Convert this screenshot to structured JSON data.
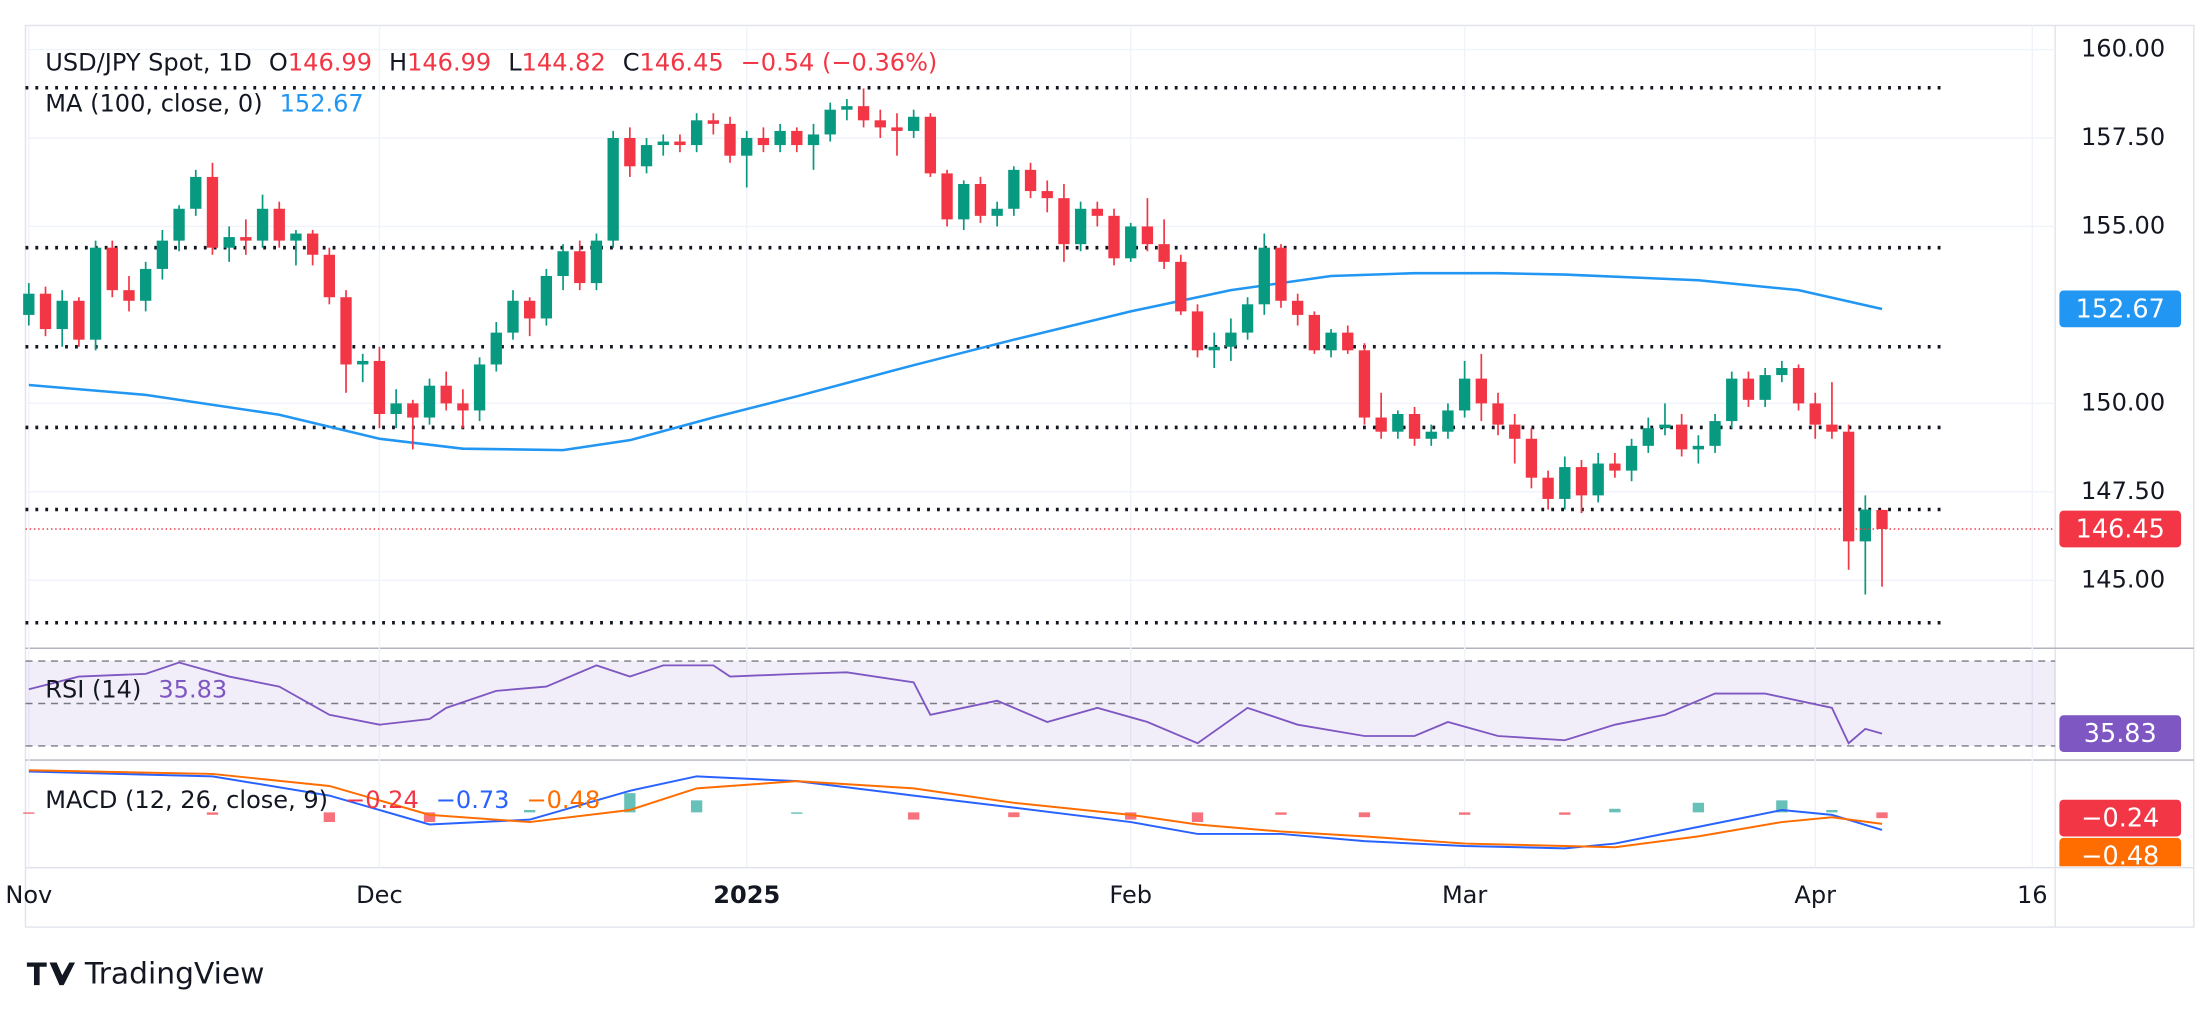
{
  "header": {
    "symbol": "USD/JPY Spot, 1D",
    "o": "O",
    "h": "H",
    "l": "L",
    "c": "C",
    "change": "−0.54 (−0.36%)"
  },
  "brand": "TradingView",
  "chart_data": [
    {
      "type": "candlestick",
      "up_color": "#089981",
      "down_color": "#f23645",
      "grid": true,
      "xlim": [
        -0.2,
        121.2
      ],
      "xticks": [
        {
          "value": 0,
          "label": "Nov"
        },
        {
          "value": 21,
          "label": "Dec"
        },
        {
          "value": 43,
          "label": "2025",
          "bold": true
        },
        {
          "value": 66,
          "label": "Feb"
        },
        {
          "value": 86,
          "label": "Mar"
        },
        {
          "value": 107,
          "label": "Apr"
        },
        {
          "value": 120,
          "label": "16"
        }
      ],
      "ylim": [
        143.2,
        160.68
      ],
      "yticks": [
        {
          "value": 145,
          "label": "145.00"
        },
        {
          "value": 147.5,
          "label": "147.50"
        },
        {
          "value": 150,
          "label": "150.00"
        },
        {
          "value": 155,
          "label": "155.00"
        },
        {
          "value": 157.5,
          "label": "157.50"
        },
        {
          "value": 160,
          "label": "160.00"
        }
      ],
      "levels": [
        158.92,
        154.4,
        151.6,
        149.32,
        147.0,
        143.8
      ],
      "ohlc": [
        [
          152.5,
          153.4,
          152.2,
          153.1
        ],
        [
          153.1,
          153.3,
          151.9,
          152.1
        ],
        [
          152.1,
          153.2,
          151.6,
          152.9
        ],
        [
          152.9,
          153.0,
          151.6,
          151.8
        ],
        [
          151.8,
          154.6,
          151.5,
          154.4
        ],
        [
          154.4,
          154.6,
          153.0,
          153.2
        ],
        [
          153.2,
          153.6,
          152.6,
          152.9
        ],
        [
          152.9,
          154.0,
          152.6,
          153.8
        ],
        [
          153.8,
          154.9,
          153.5,
          154.6
        ],
        [
          154.6,
          155.6,
          154.3,
          155.5
        ],
        [
          155.5,
          156.6,
          155.3,
          156.4
        ],
        [
          156.4,
          156.8,
          154.2,
          154.4
        ],
        [
          154.4,
          155.0,
          154.0,
          154.7
        ],
        [
          154.7,
          155.2,
          154.2,
          154.6
        ],
        [
          154.6,
          155.9,
          154.4,
          155.5
        ],
        [
          155.5,
          155.7,
          154.4,
          154.6
        ],
        [
          154.6,
          154.9,
          153.9,
          154.8
        ],
        [
          154.8,
          154.9,
          153.9,
          154.2
        ],
        [
          154.2,
          154.4,
          152.8,
          153.0
        ],
        [
          153.0,
          153.2,
          150.3,
          151.1
        ],
        [
          151.1,
          151.4,
          150.6,
          151.2
        ],
        [
          151.2,
          151.6,
          149.3,
          149.7
        ],
        [
          149.7,
          150.4,
          149.3,
          150.0
        ],
        [
          150.0,
          150.1,
          148.7,
          149.6
        ],
        [
          149.6,
          150.7,
          149.4,
          150.5
        ],
        [
          150.5,
          150.9,
          149.8,
          150.0
        ],
        [
          150.0,
          150.4,
          149.3,
          149.8
        ],
        [
          149.8,
          151.3,
          149.5,
          151.1
        ],
        [
          151.1,
          152.3,
          150.9,
          152.0
        ],
        [
          152.0,
          153.2,
          151.8,
          152.9
        ],
        [
          152.9,
          153.0,
          151.9,
          152.4
        ],
        [
          152.4,
          153.8,
          152.2,
          153.6
        ],
        [
          153.6,
          154.5,
          153.2,
          154.3
        ],
        [
          154.3,
          154.6,
          153.2,
          153.4
        ],
        [
          153.4,
          154.8,
          153.2,
          154.6
        ],
        [
          154.6,
          157.7,
          154.4,
          157.5
        ],
        [
          157.5,
          157.8,
          156.4,
          156.7
        ],
        [
          156.7,
          157.5,
          156.5,
          157.3
        ],
        [
          157.3,
          157.6,
          157.0,
          157.4
        ],
        [
          157.4,
          157.6,
          157.1,
          157.3
        ],
        [
          157.3,
          158.2,
          157.1,
          158.0
        ],
        [
          158.0,
          158.2,
          157.6,
          157.9
        ],
        [
          157.9,
          158.1,
          156.8,
          157.0
        ],
        [
          157.0,
          157.7,
          156.1,
          157.5
        ],
        [
          157.5,
          157.8,
          157.1,
          157.3
        ],
        [
          157.3,
          157.9,
          157.1,
          157.7
        ],
        [
          157.7,
          157.8,
          157.1,
          157.3
        ],
        [
          157.3,
          157.9,
          156.6,
          157.6
        ],
        [
          157.6,
          158.5,
          157.4,
          158.3
        ],
        [
          158.3,
          158.6,
          158.0,
          158.4
        ],
        [
          158.4,
          158.9,
          157.8,
          158.0
        ],
        [
          158.0,
          158.3,
          157.5,
          157.8
        ],
        [
          157.8,
          158.2,
          157.0,
          157.7
        ],
        [
          157.7,
          158.3,
          157.5,
          158.1
        ],
        [
          158.1,
          158.2,
          156.4,
          156.5
        ],
        [
          156.5,
          156.6,
          155.0,
          155.2
        ],
        [
          155.2,
          156.3,
          154.9,
          156.2
        ],
        [
          156.2,
          156.4,
          155.1,
          155.3
        ],
        [
          155.3,
          155.7,
          155.0,
          155.5
        ],
        [
          155.5,
          156.7,
          155.3,
          156.6
        ],
        [
          156.6,
          156.8,
          155.8,
          156.0
        ],
        [
          156.0,
          156.3,
          155.4,
          155.8
        ],
        [
          155.8,
          156.2,
          154.0,
          154.5
        ],
        [
          154.5,
          155.7,
          154.3,
          155.5
        ],
        [
          155.5,
          155.7,
          155.0,
          155.3
        ],
        [
          155.3,
          155.5,
          153.9,
          154.1
        ],
        [
          154.1,
          155.1,
          154.0,
          155.0
        ],
        [
          155.0,
          155.8,
          154.3,
          154.5
        ],
        [
          154.5,
          155.2,
          153.8,
          154.0
        ],
        [
          154.0,
          154.2,
          152.5,
          152.6
        ],
        [
          152.6,
          152.8,
          151.3,
          151.5
        ],
        [
          151.5,
          152.0,
          151.0,
          151.6
        ],
        [
          151.6,
          152.4,
          151.2,
          152.0
        ],
        [
          152.0,
          153.0,
          151.8,
          152.8
        ],
        [
          152.8,
          154.8,
          152.5,
          154.4
        ],
        [
          154.4,
          154.5,
          152.7,
          152.9
        ],
        [
          152.9,
          153.1,
          152.2,
          152.5
        ],
        [
          152.5,
          152.6,
          151.4,
          151.5
        ],
        [
          151.5,
          152.1,
          151.3,
          152.0
        ],
        [
          152.0,
          152.2,
          151.4,
          151.5
        ],
        [
          151.5,
          151.7,
          149.4,
          149.6
        ],
        [
          149.6,
          150.3,
          149.0,
          149.2
        ],
        [
          149.2,
          149.8,
          149.0,
          149.7
        ],
        [
          149.7,
          149.9,
          148.8,
          149.0
        ],
        [
          149.0,
          149.4,
          148.8,
          149.2
        ],
        [
          149.2,
          150.0,
          149.0,
          149.8
        ],
        [
          149.8,
          151.2,
          149.6,
          150.7
        ],
        [
          150.7,
          151.4,
          149.5,
          150.0
        ],
        [
          150.0,
          150.3,
          149.1,
          149.4
        ],
        [
          149.4,
          149.7,
          148.3,
          149.0
        ],
        [
          149.0,
          149.3,
          147.6,
          147.9
        ],
        [
          147.9,
          148.1,
          147.0,
          147.3
        ],
        [
          147.3,
          148.5,
          147.0,
          148.2
        ],
        [
          148.2,
          148.4,
          146.9,
          147.4
        ],
        [
          147.4,
          148.6,
          147.2,
          148.3
        ],
        [
          148.3,
          148.6,
          147.9,
          148.1
        ],
        [
          148.1,
          149.0,
          147.8,
          148.8
        ],
        [
          148.8,
          149.6,
          148.6,
          149.3
        ],
        [
          149.3,
          150.0,
          149.1,
          149.4
        ],
        [
          149.4,
          149.7,
          148.5,
          148.7
        ],
        [
          148.7,
          149.1,
          148.3,
          148.8
        ],
        [
          148.8,
          149.7,
          148.6,
          149.5
        ],
        [
          149.5,
          150.9,
          149.3,
          150.7
        ],
        [
          150.7,
          150.9,
          149.9,
          150.1
        ],
        [
          150.1,
          151.0,
          149.9,
          150.8
        ],
        [
          150.8,
          151.2,
          150.6,
          151.0
        ],
        [
          151.0,
          151.1,
          149.8,
          150.0
        ],
        [
          150.0,
          150.3,
          149.0,
          149.4
        ],
        [
          149.4,
          150.6,
          149.0,
          149.2
        ],
        [
          149.2,
          149.4,
          145.3,
          146.1
        ],
        [
          146.1,
          147.4,
          144.6,
          147.0
        ],
        [
          146.99,
          146.99,
          144.82,
          146.45
        ]
      ],
      "series": [
        {
          "name": "MA (100, close, 0)",
          "color": "#2196f3",
          "x": [
            0,
            7,
            15,
            21,
            26,
            32,
            36,
            41,
            46,
            53,
            59,
            66,
            72,
            78,
            83,
            88,
            92,
            100,
            106,
            111
          ],
          "values": [
            150.52,
            150.24,
            149.68,
            149.0,
            148.72,
            148.68,
            148.96,
            149.6,
            150.2,
            151.08,
            151.8,
            152.6,
            153.2,
            153.6,
            153.68,
            153.68,
            153.64,
            153.48,
            153.2,
            152.67
          ]
        }
      ]
    },
    {
      "type": "line",
      "ylim": [
        24.7,
        74.7
      ],
      "bands": [
        30,
        50,
        70
      ],
      "band_color": "#7e57c2",
      "series": [
        {
          "name": "RSI (14)",
          "color": "#7e57c2",
          "x": [
            0,
            3,
            7,
            9,
            12,
            15,
            18,
            21,
            24,
            25,
            28,
            31,
            34,
            36,
            38,
            41,
            42,
            46,
            49,
            53,
            54,
            58,
            61,
            64,
            67,
            70,
            73,
            76,
            80,
            83,
            85,
            88,
            92,
            95,
            98,
            101,
            104,
            108,
            109,
            110,
            111
          ],
          "values": [
            56.7,
            62.7,
            64,
            69.3,
            62.7,
            58,
            44.7,
            40,
            42.7,
            48,
            56,
            58,
            68,
            62.7,
            68,
            68,
            62.7,
            64,
            64.7,
            60,
            44.7,
            51.3,
            41.3,
            48,
            41.3,
            31.3,
            48,
            40,
            34.7,
            34.7,
            41.3,
            34.7,
            32.7,
            40,
            44.7,
            54.7,
            54.7,
            48,
            31.3,
            38,
            35.83
          ]
        }
      ]
    },
    {
      "type": "macd",
      "title": "MACD (12, 26, close, 9)",
      "ylim": [
        -2.24,
        2.0
      ],
      "legend_values": [
        "−0.24",
        "−0.73",
        "−0.48"
      ],
      "x": [
        0,
        11,
        18,
        24,
        30,
        36,
        40,
        46,
        53,
        59,
        66,
        70,
        75,
        80,
        86,
        92,
        95,
        100,
        105,
        108,
        111
      ],
      "series": [
        {
          "type": "histogram",
          "color": "#f23645",
          "up_color": "#26a69a",
          "values": [
            -0.05,
            -0.1,
            -0.4,
            -0.4,
            0.1,
            0.8,
            0.5,
            0,
            -0.3,
            -0.2,
            -0.3,
            -0.4,
            -0.1,
            -0.2,
            -0.1,
            -0.1,
            0.15,
            0.4,
            0.5,
            0.1,
            -0.24
          ]
        },
        {
          "type": "line",
          "color": "#2962ff",
          "values": [
            1.7,
            1.5,
            0.7,
            -0.5,
            -0.3,
            0.9,
            1.5,
            1.3,
            0.7,
            0.2,
            -0.4,
            -0.9,
            -0.9,
            -1.2,
            -1.4,
            -1.5,
            -1.3,
            -0.6,
            0.1,
            -0.1,
            -0.73
          ]
        },
        {
          "type": "line",
          "color": "#ff6d00",
          "values": [
            1.75,
            1.6,
            1.1,
            -0.1,
            -0.4,
            0.1,
            1.0,
            1.3,
            1.0,
            0.4,
            -0.1,
            -0.5,
            -0.8,
            -1.0,
            -1.3,
            -1.4,
            -1.45,
            -1.0,
            -0.4,
            -0.2,
            -0.48
          ]
        }
      ]
    }
  ]
}
